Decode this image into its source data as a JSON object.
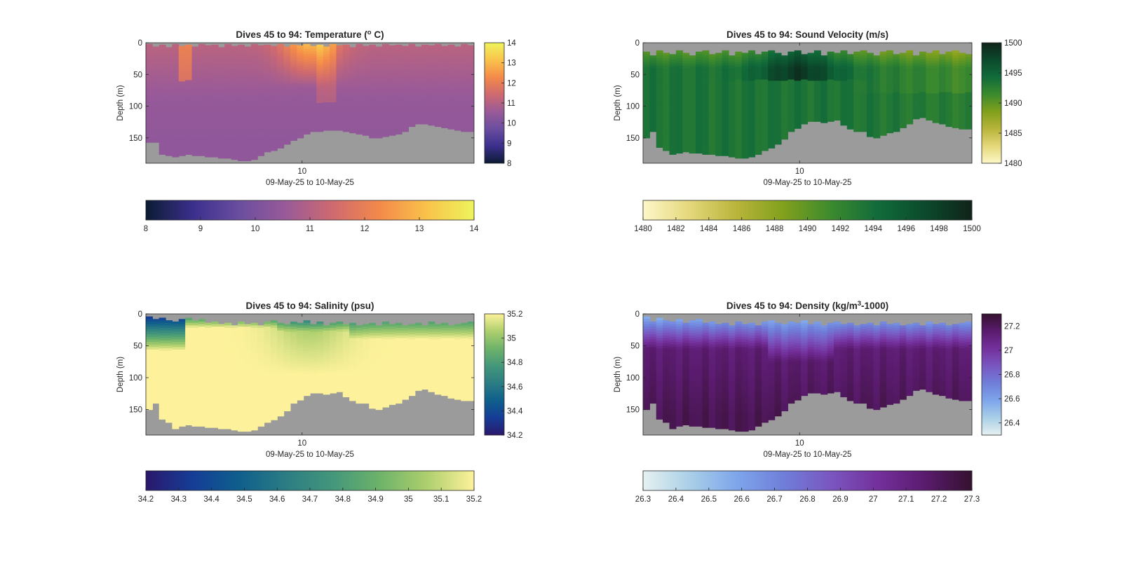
{
  "chart_data": [
    {
      "id": "temperature",
      "type": "heatmap",
      "title_main": "Dives 45 to 94: Temperature (",
      "title_sup": "o",
      "title_tail": " C)",
      "xlabel": "09-May-25 to 10-May-25",
      "ylabel": "Depth (m)",
      "x_tick_labels": [
        "10"
      ],
      "y_ticks": [
        0,
        50,
        100,
        150
      ],
      "ylim": [
        0,
        190
      ],
      "y_reversed": true,
      "n_dives": 50,
      "colormap": "thermal",
      "colormap_stops": [
        "#0b1b33",
        "#3b2f8c",
        "#6a4ea0",
        "#9a5a98",
        "#cf6a6f",
        "#f48a4a",
        "#f9c34b",
        "#eef45c"
      ],
      "clim": [
        8,
        14
      ],
      "colorbar_ticks": [
        8,
        9,
        10,
        11,
        12,
        13,
        14
      ],
      "h_colorbar_ticks": [
        8,
        9,
        10,
        11,
        12,
        13,
        14
      ],
      "bottom_depth_m": [
        157,
        157,
        176,
        178,
        180,
        178,
        176,
        178,
        178,
        180,
        180,
        182,
        182,
        184,
        186,
        186,
        184,
        178,
        172,
        170,
        166,
        160,
        154,
        150,
        144,
        140,
        140,
        138,
        138,
        138,
        140,
        142,
        144,
        146,
        150,
        150,
        148,
        146,
        144,
        140,
        132,
        128,
        128,
        130,
        132,
        134,
        136,
        138,
        140,
        140
      ],
      "surface_gap_m": [
        2,
        6,
        3,
        7,
        2,
        5,
        3,
        6,
        2,
        4,
        3,
        7,
        2,
        5,
        3,
        6,
        2,
        4,
        3,
        5,
        2,
        6,
        3,
        4,
        2,
        5,
        3,
        6,
        2,
        4,
        3,
        7,
        2,
        5,
        3,
        6,
        2,
        4,
        3,
        5,
        2,
        6,
        3,
        4,
        2,
        5,
        3,
        6,
        2,
        4
      ],
      "fill_color": "#9b9b9b"
    },
    {
      "id": "sound-velocity",
      "type": "heatmap",
      "title_main": "Dives 45 to 94: Sound Velocity (m/s)",
      "title_sup": "",
      "title_tail": "",
      "xlabel": "09-May-25 to 10-May-25",
      "ylabel": "Depth (m)",
      "x_tick_labels": [
        "10"
      ],
      "y_ticks": [
        0,
        50,
        100,
        150
      ],
      "ylim": [
        0,
        190
      ],
      "y_reversed": true,
      "n_dives": 50,
      "colormap": "speed",
      "colormap_stops": [
        "#fdf7c8",
        "#e4d77a",
        "#b8b43a",
        "#80a01c",
        "#3c8a2e",
        "#116b3a",
        "#0b4a2c",
        "#10231a"
      ],
      "clim": [
        1480,
        1500
      ],
      "colorbar_ticks": [
        1480,
        1485,
        1490,
        1495,
        1500
      ],
      "h_colorbar_ticks": [
        1480,
        1482,
        1484,
        1486,
        1488,
        1490,
        1492,
        1494,
        1496,
        1498,
        1500
      ],
      "bottom_depth_m": [
        150,
        140,
        165,
        170,
        176,
        174,
        172,
        174,
        174,
        176,
        176,
        178,
        178,
        180,
        182,
        182,
        180,
        176,
        170,
        166,
        160,
        152,
        140,
        135,
        128,
        124,
        124,
        126,
        124,
        122,
        130,
        136,
        140,
        140,
        148,
        150,
        146,
        142,
        140,
        134,
        128,
        120,
        118,
        122,
        126,
        128,
        132,
        134,
        136,
        136
      ],
      "surface_gap_m": [
        14,
        20,
        12,
        16,
        18,
        12,
        16,
        20,
        14,
        12,
        18,
        16,
        12,
        20,
        14,
        16,
        12,
        18,
        14,
        12,
        16,
        20,
        14,
        12,
        18,
        16,
        12,
        20,
        14,
        16,
        12,
        18,
        14,
        12,
        16,
        20,
        14,
        12,
        18,
        16,
        12,
        20,
        14,
        16,
        12,
        18,
        14,
        12,
        16,
        18
      ],
      "fill_color": "#9b9b9b"
    },
    {
      "id": "salinity",
      "type": "heatmap",
      "title_main": "Dives 45 to 94: Salinity (psu)",
      "title_sup": "",
      "title_tail": "",
      "xlabel": "09-May-25 to 10-May-25",
      "ylabel": "Depth (m)",
      "x_tick_labels": [
        "10"
      ],
      "y_ticks": [
        0,
        50,
        100,
        150
      ],
      "ylim": [
        0,
        190
      ],
      "y_reversed": true,
      "n_dives": 50,
      "colormap": "haline",
      "colormap_stops": [
        "#2a186c",
        "#153d96",
        "#0f5f8c",
        "#2b7d83",
        "#44977a",
        "#6eb36a",
        "#aecf6e",
        "#fdf29b"
      ],
      "clim": [
        34.2,
        35.2
      ],
      "colorbar_ticks": [
        34.2,
        34.4,
        34.6,
        34.8,
        35,
        35.2
      ],
      "h_colorbar_ticks": [
        34.2,
        34.3,
        34.4,
        34.5,
        34.6,
        34.7,
        34.8,
        34.9,
        35,
        35.1,
        35.2
      ],
      "bottom_depth_m": [
        150,
        140,
        165,
        170,
        180,
        176,
        174,
        176,
        176,
        178,
        178,
        180,
        180,
        182,
        184,
        184,
        182,
        176,
        170,
        166,
        160,
        152,
        140,
        135,
        128,
        124,
        124,
        126,
        124,
        122,
        130,
        136,
        140,
        140,
        148,
        150,
        146,
        142,
        140,
        134,
        128,
        120,
        118,
        122,
        126,
        128,
        132,
        134,
        136,
        136
      ],
      "surface_gap_m": [
        4,
        8,
        6,
        10,
        12,
        8,
        6,
        10,
        8,
        14,
        12,
        16,
        14,
        18,
        12,
        16,
        14,
        18,
        12,
        10,
        14,
        16,
        12,
        14,
        10,
        16,
        12,
        18,
        14,
        12,
        16,
        14,
        18,
        16,
        14,
        18,
        12,
        16,
        14,
        18,
        16,
        14,
        18,
        12,
        16,
        14,
        18,
        16,
        14,
        12
      ],
      "fill_color": "#9b9b9b"
    },
    {
      "id": "density",
      "type": "heatmap",
      "title_main": "Dives 45 to 94: Density (kg/m",
      "title_sup": "3",
      "title_tail": "-1000)",
      "xlabel": "09-May-25 to 10-May-25",
      "ylabel": "Depth (m)",
      "x_tick_labels": [
        "10"
      ],
      "y_ticks": [
        0,
        50,
        100,
        150
      ],
      "ylim": [
        0,
        190
      ],
      "y_reversed": true,
      "n_dives": 50,
      "colormap": "dense",
      "colormap_stops": [
        "#e6f1f1",
        "#a9cfe7",
        "#7ea5eb",
        "#6f7ed9",
        "#7a56c0",
        "#74309c",
        "#5a1b6e",
        "#35112f"
      ],
      "clim": [
        26.3,
        27.3
      ],
      "colorbar_ticks": [
        26.4,
        26.6,
        26.8,
        27,
        27.2
      ],
      "h_colorbar_ticks": [
        26.3,
        26.4,
        26.5,
        26.6,
        26.7,
        26.8,
        26.9,
        27,
        27.1,
        27.2,
        27.3
      ],
      "bottom_depth_m": [
        150,
        140,
        165,
        170,
        180,
        176,
        174,
        176,
        176,
        178,
        178,
        180,
        180,
        182,
        184,
        184,
        182,
        176,
        170,
        166,
        160,
        152,
        140,
        135,
        128,
        124,
        124,
        126,
        124,
        122,
        130,
        136,
        140,
        140,
        148,
        150,
        146,
        142,
        140,
        134,
        128,
        120,
        118,
        122,
        126,
        128,
        132,
        134,
        136,
        136
      ],
      "surface_gap_m": [
        4,
        12,
        6,
        10,
        12,
        8,
        14,
        10,
        8,
        14,
        12,
        16,
        14,
        18,
        12,
        16,
        14,
        18,
        12,
        10,
        14,
        16,
        12,
        14,
        10,
        16,
        12,
        18,
        14,
        12,
        16,
        14,
        18,
        16,
        14,
        18,
        12,
        16,
        14,
        18,
        16,
        14,
        18,
        12,
        16,
        14,
        18,
        16,
        14,
        12
      ],
      "fill_color": "#9b9b9b"
    }
  ]
}
